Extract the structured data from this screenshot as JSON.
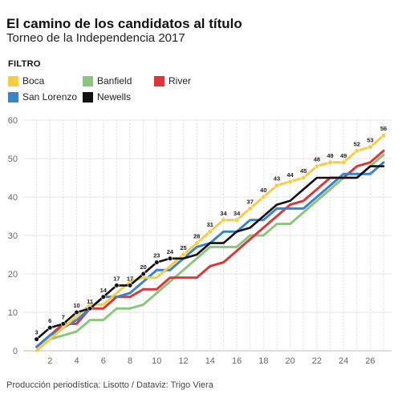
{
  "header": {
    "title": "El camino de los candidatos al título",
    "subtitle": "Torneo de la Independencia 2017"
  },
  "filter": {
    "label": "FILTRO",
    "items": [
      {
        "name": "Boca",
        "color": "#f6cc46"
      },
      {
        "name": "Banfield",
        "color": "#8cc57e"
      },
      {
        "name": "River",
        "color": "#d9383a"
      },
      {
        "name": "San Lorenzo",
        "color": "#3b83c8"
      },
      {
        "name": "Newells",
        "color": "#111111"
      }
    ]
  },
  "footer": {
    "credit": "Producción periodística: Lisotto / Dataviz: Trigo Viera"
  },
  "chart_data": {
    "type": "line",
    "xlim": [
      0,
      27.6
    ],
    "ylim": [
      0,
      60
    ],
    "x_ticks": [
      2,
      4,
      6,
      8,
      10,
      12,
      14,
      16,
      18,
      20,
      22,
      24,
      26
    ],
    "y_ticks": [
      0,
      10,
      20,
      30,
      40,
      50,
      60
    ],
    "grid": {
      "horizontal": true,
      "vertical_dashed": true
    },
    "x": [
      1,
      2,
      3,
      4,
      5,
      6,
      7,
      8,
      9,
      10,
      11,
      12,
      13,
      14,
      15,
      16,
      17,
      18,
      19,
      20,
      21,
      22,
      23,
      24,
      25,
      26,
      27
    ],
    "series": [
      {
        "name": "Banfield",
        "color": "#8cc57e",
        "values": [
          0,
          3,
          4,
          5,
          8,
          8,
          11,
          11,
          12,
          15,
          18,
          21,
          24,
          27,
          27,
          27,
          30,
          30,
          33,
          33,
          36,
          39,
          42,
          45,
          45,
          48,
          51
        ]
      },
      {
        "name": "River",
        "color": "#d9383a",
        "values": [
          1,
          4,
          7,
          7,
          11,
          11,
          14,
          14,
          16,
          16,
          19,
          19,
          19,
          22,
          23,
          26,
          29,
          32,
          35,
          38,
          39,
          42,
          45,
          45,
          48,
          49,
          52
        ]
      },
      {
        "name": "San Lorenzo",
        "color": "#3b83c8",
        "values": [
          1,
          4,
          6,
          8,
          11,
          14,
          14,
          15,
          18,
          21,
          21,
          24,
          27,
          28,
          31,
          31,
          34,
          34,
          37,
          37,
          37,
          40,
          43,
          46,
          46,
          46,
          49
        ]
      },
      {
        "name": "Boca",
        "color": "#f6cc46",
        "values": [
          0,
          3,
          6,
          9,
          12,
          12,
          15,
          18,
          19,
          19,
          22,
          25,
          28,
          31,
          34,
          34,
          37,
          40,
          43,
          44,
          45,
          48,
          49,
          49,
          52,
          53,
          56
        ]
      },
      {
        "name": "Newells",
        "color": "#111111",
        "values": [
          3,
          6,
          7,
          10,
          11,
          14,
          17,
          17,
          20,
          23,
          24,
          24,
          25,
          28,
          28,
          31,
          32,
          35,
          38,
          39,
          42,
          45,
          45,
          45,
          45,
          48,
          48
        ]
      }
    ],
    "point_labels": [
      {
        "series": "Newells",
        "x": 1,
        "label": "3"
      },
      {
        "series": "Newells",
        "x": 2,
        "label": "6"
      },
      {
        "series": "Newells",
        "x": 3,
        "label": "7"
      },
      {
        "series": "Newells",
        "x": 4,
        "label": "10"
      },
      {
        "series": "Newells",
        "x": 5,
        "label": "11"
      },
      {
        "series": "Newells",
        "x": 6,
        "label": "14"
      },
      {
        "series": "Newells",
        "x": 7,
        "label": "17"
      },
      {
        "series": "Newells",
        "x": 8,
        "label": "17"
      },
      {
        "series": "Newells",
        "x": 9,
        "label": "20"
      },
      {
        "series": "Newells",
        "x": 10,
        "label": "23"
      },
      {
        "series": "Newells",
        "x": 11,
        "label": "24"
      },
      {
        "series": "Boca",
        "x": 12,
        "label": "25"
      },
      {
        "series": "Boca",
        "x": 13,
        "label": "28"
      },
      {
        "series": "Boca",
        "x": 14,
        "label": "31"
      },
      {
        "series": "Boca",
        "x": 15,
        "label": "34"
      },
      {
        "series": "Boca",
        "x": 16,
        "label": "34"
      },
      {
        "series": "Boca",
        "x": 17,
        "label": "37"
      },
      {
        "series": "Boca",
        "x": 18,
        "label": "40"
      },
      {
        "series": "Boca",
        "x": 19,
        "label": "43"
      },
      {
        "series": "Boca",
        "x": 20,
        "label": "44"
      },
      {
        "series": "Boca",
        "x": 21,
        "label": "45"
      },
      {
        "series": "Boca",
        "x": 22,
        "label": "48"
      },
      {
        "series": "Boca",
        "x": 23,
        "label": "49"
      },
      {
        "series": "Boca",
        "x": 24,
        "label": "49"
      },
      {
        "series": "Boca",
        "x": 25,
        "label": "52"
      },
      {
        "series": "Boca",
        "x": 26,
        "label": "53"
      },
      {
        "series": "Boca",
        "x": 27,
        "label": "56"
      }
    ]
  }
}
